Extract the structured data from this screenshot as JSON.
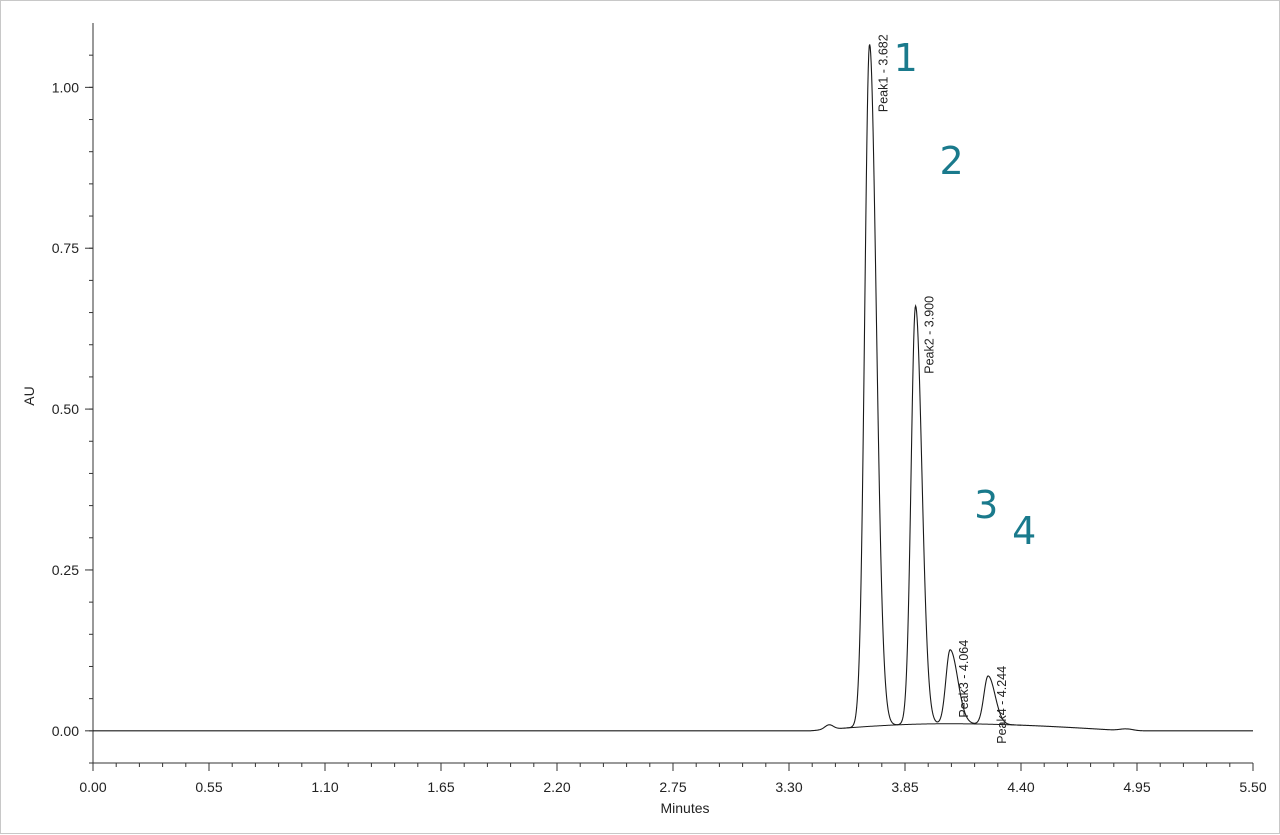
{
  "chart_data": {
    "type": "line",
    "title": "",
    "xlabel": "Minutes",
    "ylabel": "AU",
    "xlim": [
      0.0,
      5.5
    ],
    "ylim": [
      -0.05,
      1.1
    ],
    "x_ticks": [
      "0.00",
      "0.55",
      "1.10",
      "1.65",
      "2.20",
      "2.75",
      "3.30",
      "3.85",
      "4.40",
      "4.95",
      "5.50"
    ],
    "y_ticks": [
      "0.00",
      "0.25",
      "0.50",
      "0.75",
      "1.00"
    ],
    "x_minor_step": 0.11,
    "y_minor_step": 0.05,
    "grid": false,
    "colors": {
      "trace": "#1a1a1a",
      "axis": "#333333",
      "peak_number": "#1a7a8c"
    },
    "baseline_hump": {
      "start": 3.4,
      "peak_x": 4.05,
      "end": 4.9,
      "height": 0.011
    },
    "minor_features": [
      {
        "x": 3.49,
        "height": 0.007,
        "width": 0.02
      },
      {
        "x": 4.9,
        "height": 0.003,
        "width": 0.03
      }
    ],
    "peaks": [
      {
        "number": "1",
        "label": "Peak1 - 3.682",
        "x": 3.682,
        "height": 1.06,
        "sigma_left": 0.023,
        "sigma_right": 0.032
      },
      {
        "number": "2",
        "label": "Peak2 - 3.900",
        "x": 3.9,
        "height": 0.65,
        "sigma_left": 0.021,
        "sigma_right": 0.03
      },
      {
        "number": "3",
        "label": "Peak3 - 4.064",
        "x": 4.064,
        "height": 0.115,
        "sigma_left": 0.02,
        "sigma_right": 0.036
      },
      {
        "number": "4",
        "label": "Peak4 - 4.244",
        "x": 4.244,
        "height": 0.075,
        "sigma_left": 0.02,
        "sigma_right": 0.033
      }
    ]
  }
}
